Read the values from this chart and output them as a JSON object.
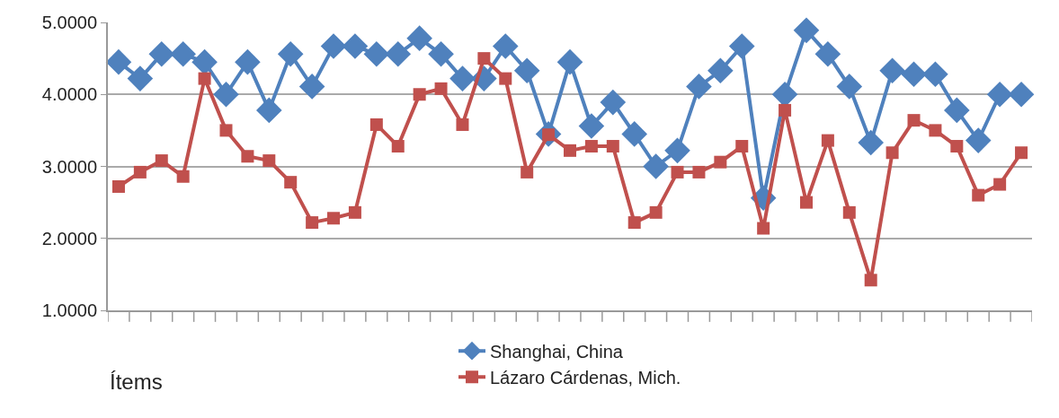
{
  "chart_data": {
    "type": "line",
    "xlabel": "Ítems",
    "categories": [
      null,
      null,
      null,
      null,
      null,
      null,
      null,
      null,
      null,
      null,
      null,
      null,
      null,
      null,
      null,
      null,
      null,
      null,
      null,
      null,
      null,
      null,
      null,
      null,
      null,
      null,
      null,
      null,
      null,
      null,
      null,
      null,
      null,
      null,
      null,
      null,
      null,
      null,
      null,
      null,
      null,
      null,
      null
    ],
    "series": [
      {
        "name": "Shanghai, China",
        "color": "#4f81bd",
        "marker": "diamond",
        "values": [
          4.45,
          4.22,
          4.56,
          4.56,
          4.45,
          4.0,
          4.45,
          3.78,
          4.56,
          4.11,
          4.67,
          4.67,
          4.56,
          4.56,
          4.78,
          4.56,
          4.22,
          4.22,
          4.67,
          4.33,
          3.45,
          4.45,
          3.56,
          3.89,
          3.45,
          3.0,
          3.22,
          4.11,
          4.33,
          4.67,
          2.56,
          4.0,
          4.89,
          4.56,
          4.11,
          3.33,
          4.33,
          4.28,
          4.28,
          3.78,
          3.36,
          4.0,
          4.0
        ]
      },
      {
        "name": "Lázaro Cárdenas, Mich.",
        "color": "#c0504d",
        "marker": "square",
        "values": [
          2.72,
          2.92,
          3.08,
          2.86,
          4.22,
          3.5,
          3.14,
          3.08,
          2.78,
          2.22,
          2.28,
          2.36,
          3.58,
          3.28,
          4.0,
          4.08,
          3.58,
          4.5,
          4.22,
          2.92,
          3.44,
          3.22,
          3.28,
          3.28,
          2.22,
          2.36,
          2.92,
          2.92,
          3.06,
          3.28,
          2.14,
          3.78,
          2.5,
          3.36,
          2.36,
          1.42,
          3.19,
          3.64,
          3.5,
          3.28,
          2.6,
          2.75,
          3.19
        ]
      }
    ],
    "ylim": [
      1,
      5
    ],
    "yticks": [
      {
        "value": 1,
        "label": "1.0000"
      },
      {
        "value": 2,
        "label": "2.0000"
      },
      {
        "value": 3,
        "label": "3.0000"
      },
      {
        "value": 4,
        "label": "4.0000"
      },
      {
        "value": 5,
        "label": "5.0000"
      }
    ],
    "grid": "y",
    "legend": "bottom",
    "tick_labels": "y",
    "line_style": "solid"
  }
}
